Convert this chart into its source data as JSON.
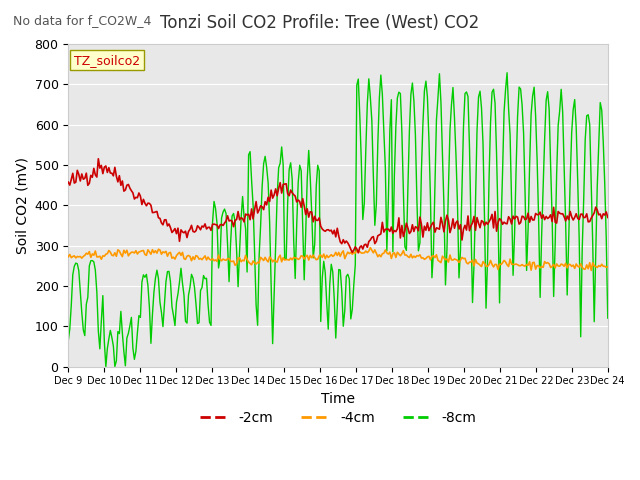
{
  "title": "Tonzi Soil CO2 Profile: Tree (West) CO2",
  "subtitle": "No data for f_CO2W_4",
  "xlabel": "Time",
  "ylabel": "Soil CO2 (mV)",
  "ylim": [
    0,
    800
  ],
  "yticks": [
    0,
    100,
    200,
    300,
    400,
    500,
    600,
    700,
    800
  ],
  "xtick_labels": [
    "Dec 9",
    "Dec 10",
    "Dec 11",
    "Dec 12",
    "Dec 13",
    "Dec 14",
    "Dec 15",
    "Dec 16",
    "Dec 17",
    "Dec 18",
    "Dec 19",
    "Dec 20",
    "Dec 21",
    "Dec 22",
    "Dec 23",
    "Dec 24"
  ],
  "legend_label": "TZ_soilco2",
  "legend_entries": [
    "-2cm",
    "-4cm",
    "-8cm"
  ],
  "legend_colors": [
    "#cc0000",
    "#ff9900",
    "#00cc00"
  ],
  "line_colors": [
    "#cc0000",
    "#ff9900",
    "#00cc00"
  ],
  "background_color": "#e8e8e8",
  "fig_background": "#ffffff"
}
